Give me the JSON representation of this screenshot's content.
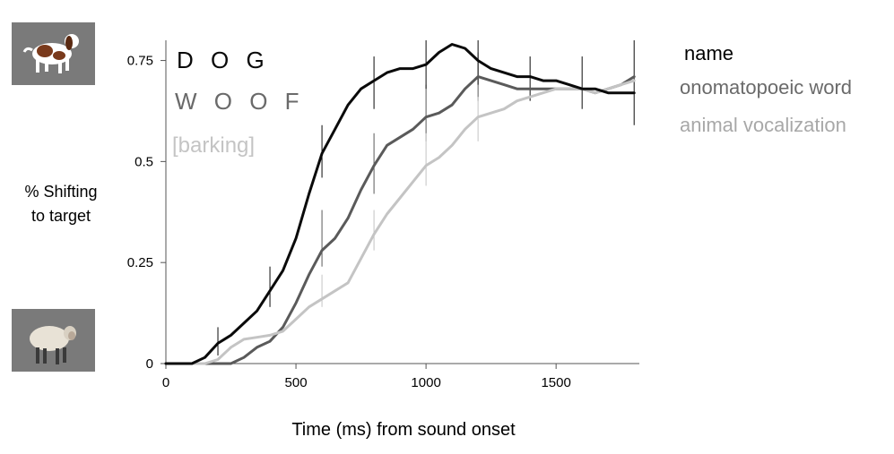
{
  "chart_data": {
    "type": "line",
    "title": "",
    "xlabel": "Time (ms) from sound onset",
    "ylabel_lines": [
      "% Shifting",
      "to target"
    ],
    "xlim": [
      0,
      1820
    ],
    "ylim": [
      0,
      0.8
    ],
    "xticks": [
      0,
      500,
      1000,
      1500
    ],
    "yticks": [
      0,
      0.25,
      0.5,
      0.75
    ],
    "ytick_labels": [
      "0",
      "0.25",
      "0.5",
      "0.75"
    ],
    "grid": false,
    "legend_title": "name",
    "legend_placement": "right",
    "series": [
      {
        "name": "onomatopoeic word",
        "inline_label": "W O O F",
        "color": "#5a5a5a",
        "x": [
          0,
          100,
          150,
          200,
          250,
          300,
          350,
          400,
          450,
          500,
          550,
          600,
          650,
          700,
          750,
          800,
          850,
          900,
          950,
          1000,
          1050,
          1100,
          1150,
          1200,
          1250,
          1300,
          1350,
          1400,
          1450,
          1500,
          1550,
          1600,
          1650,
          1700,
          1750,
          1800
        ],
        "y": [
          0,
          0,
          0,
          0,
          0,
          0.015,
          0.04,
          0.055,
          0.09,
          0.15,
          0.22,
          0.28,
          0.31,
          0.36,
          0.43,
          0.49,
          0.54,
          0.56,
          0.58,
          0.61,
          0.62,
          0.64,
          0.68,
          0.71,
          0.7,
          0.69,
          0.68,
          0.68,
          0.68,
          0.68,
          0.68,
          0.68,
          0.67,
          0.68,
          0.69,
          0.71
        ],
        "error_bars": [
          {
            "x": 600,
            "low": 0.24,
            "high": 0.38
          },
          {
            "x": 800,
            "low": 0.42,
            "high": 0.57
          },
          {
            "x": 1000,
            "low": 0.55,
            "high": 0.69
          },
          {
            "x": 1200,
            "low": 0.65,
            "high": 0.77
          }
        ]
      },
      {
        "name": "animal vocalization",
        "inline_label": "[barking]",
        "color": "#c4c4c4",
        "x": [
          0,
          150,
          200,
          250,
          300,
          350,
          400,
          450,
          500,
          550,
          600,
          650,
          700,
          750,
          800,
          850,
          900,
          950,
          1000,
          1050,
          1100,
          1150,
          1200,
          1250,
          1300,
          1350,
          1400,
          1450,
          1500,
          1550,
          1600,
          1650,
          1700,
          1750,
          1800
        ],
        "y": [
          0,
          0,
          0.01,
          0.04,
          0.06,
          0.065,
          0.07,
          0.08,
          0.11,
          0.14,
          0.16,
          0.18,
          0.2,
          0.26,
          0.32,
          0.37,
          0.41,
          0.45,
          0.49,
          0.51,
          0.54,
          0.58,
          0.61,
          0.62,
          0.63,
          0.65,
          0.66,
          0.67,
          0.68,
          0.68,
          0.68,
          0.67,
          0.68,
          0.69,
          0.7
        ],
        "error_bars": [
          {
            "x": 600,
            "low": 0.14,
            "high": 0.22
          },
          {
            "x": 800,
            "low": 0.28,
            "high": 0.38
          },
          {
            "x": 1000,
            "low": 0.44,
            "high": 0.57
          },
          {
            "x": 1200,
            "low": 0.55,
            "high": 0.66
          }
        ]
      },
      {
        "name": "name",
        "inline_label": "D O G",
        "color": "#0a0a0a",
        "x": [
          0,
          100,
          150,
          200,
          250,
          300,
          350,
          400,
          450,
          500,
          550,
          600,
          650,
          700,
          750,
          800,
          850,
          900,
          950,
          1000,
          1050,
          1100,
          1150,
          1200,
          1250,
          1300,
          1350,
          1400,
          1450,
          1500,
          1550,
          1600,
          1650,
          1700,
          1750,
          1800
        ],
        "y": [
          0,
          0,
          0.015,
          0.05,
          0.07,
          0.1,
          0.13,
          0.18,
          0.23,
          0.31,
          0.42,
          0.52,
          0.58,
          0.64,
          0.68,
          0.7,
          0.72,
          0.73,
          0.73,
          0.74,
          0.77,
          0.79,
          0.78,
          0.75,
          0.73,
          0.72,
          0.71,
          0.71,
          0.7,
          0.7,
          0.69,
          0.68,
          0.68,
          0.67,
          0.67,
          0.67
        ],
        "error_bars": [
          {
            "x": 200,
            "low": 0.02,
            "high": 0.09
          },
          {
            "x": 400,
            "low": 0.14,
            "high": 0.24
          },
          {
            "x": 600,
            "low": 0.46,
            "high": 0.59
          },
          {
            "x": 800,
            "low": 0.63,
            "high": 0.76
          },
          {
            "x": 1000,
            "low": 0.68,
            "high": 0.8
          },
          {
            "x": 1200,
            "low": 0.69,
            "high": 0.8
          },
          {
            "x": 1400,
            "low": 0.65,
            "high": 0.76
          },
          {
            "x": 1600,
            "low": 0.63,
            "high": 0.76
          },
          {
            "x": 1800,
            "low": 0.59,
            "high": 0.8
          }
        ]
      }
    ],
    "images": [
      {
        "name": "dog-image",
        "position": "top-left"
      },
      {
        "name": "sheep-image",
        "position": "bottom-left"
      }
    ]
  }
}
